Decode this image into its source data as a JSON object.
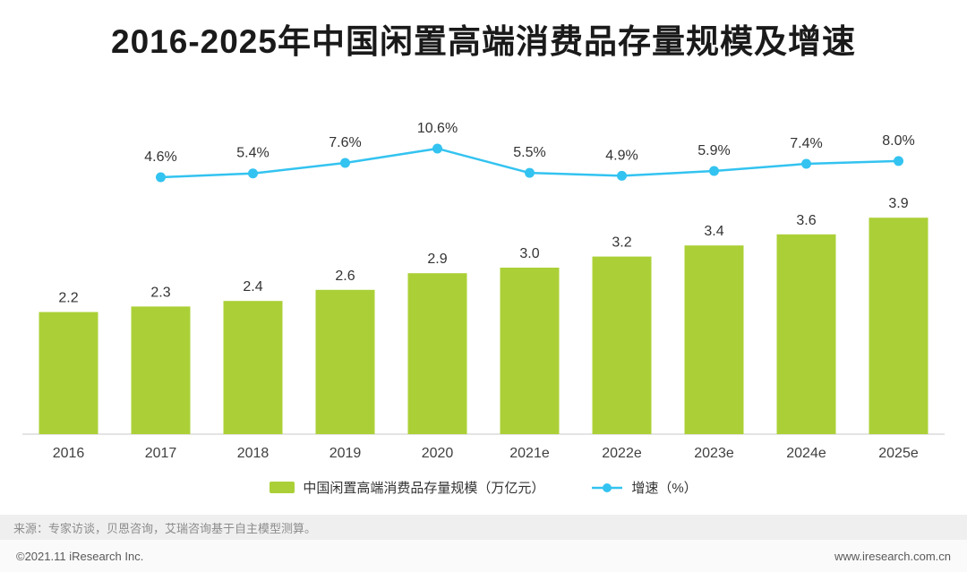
{
  "title": "2016-2025年中国闲置高端消费品存量规模及增速",
  "chart_data": {
    "type": "bar+line",
    "title": "2016-2025年中国闲置高端消费品存量规模及增速",
    "categories": [
      "2016",
      "2017",
      "2018",
      "2019",
      "2020",
      "2021e",
      "2022e",
      "2023e",
      "2024e",
      "2025e"
    ],
    "series": [
      {
        "name": "中国闲置高端消费品存量规模（万亿元）",
        "type": "bar",
        "color": "#abd037",
        "unit": "万亿元",
        "values": [
          2.2,
          2.3,
          2.4,
          2.6,
          2.9,
          3.0,
          3.2,
          3.4,
          3.6,
          3.9
        ]
      },
      {
        "name": "增速（%）",
        "type": "line",
        "color": "#33c3f0",
        "unit": "%",
        "values": [
          null,
          4.6,
          5.4,
          7.6,
          10.6,
          5.5,
          4.9,
          5.9,
          7.4,
          8.0
        ]
      }
    ],
    "value_labels_shown": true,
    "legend_position": "bottom",
    "grid": false,
    "y_axis_visible": false
  },
  "source": "来源：专家访谈，贝恩咨询，艾瑞咨询基于自主模型测算。",
  "footer": {
    "copyright": "©2021.11 iResearch Inc.",
    "website": "www.iresearch.com.cn"
  }
}
